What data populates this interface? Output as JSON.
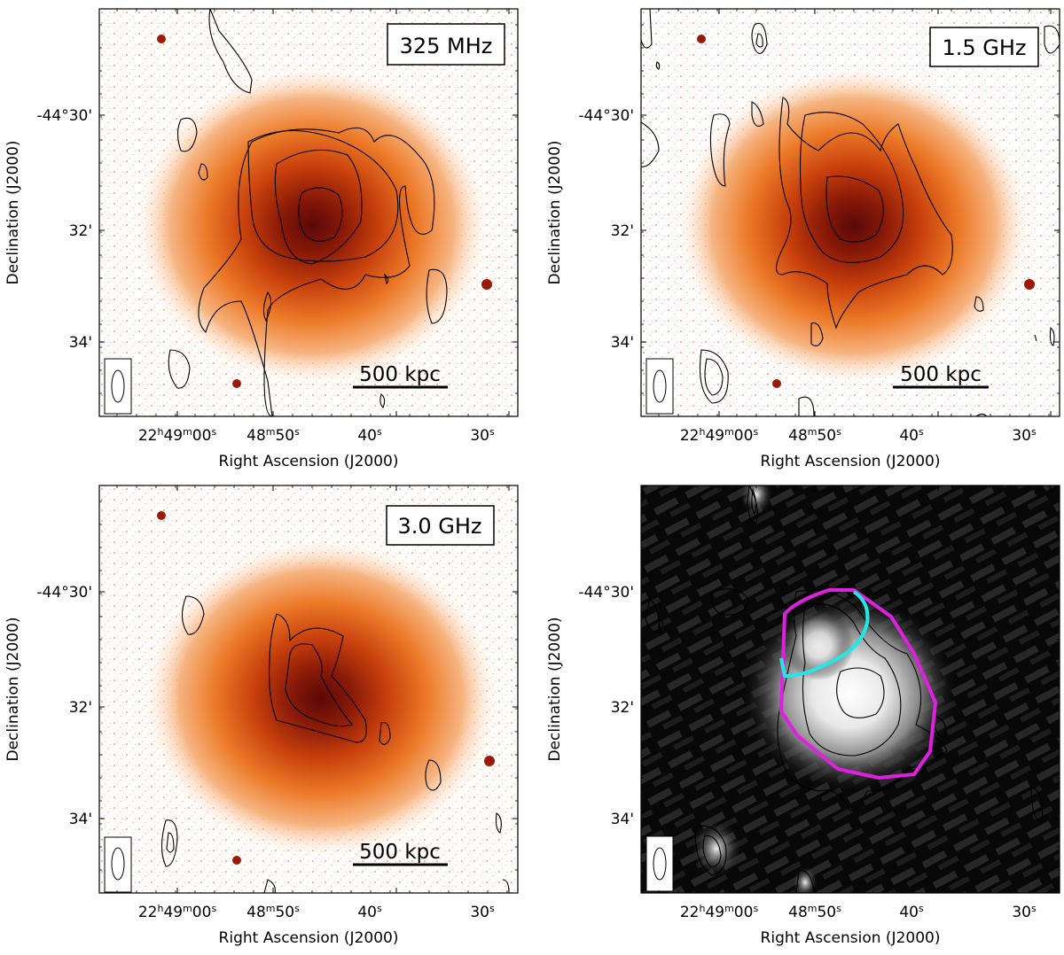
{
  "figure": {
    "axes": {
      "xlabel": "Right Ascension (J2000)",
      "ylabel": "Declination (J2000)",
      "xticks": [
        {
          "main": "22",
          "sup1": "h",
          "mid": "49",
          "sup2": "m",
          "tail": "00",
          "sup3": "s"
        },
        {
          "main": "48",
          "sup1": "m",
          "mid": "50",
          "sup2": "s"
        },
        {
          "main": "40",
          "sup1": "s"
        },
        {
          "main": "30",
          "sup1": "s"
        }
      ],
      "yticks": [
        "-44°30'",
        "32'",
        "34'"
      ]
    },
    "panels": [
      {
        "id": "a",
        "freq_label": "325 MHz",
        "scalebar": "500 kpc",
        "image": "x-ray-surface-brightness-orange"
      },
      {
        "id": "b",
        "freq_label": "1.5 GHz",
        "scalebar": "500 kpc",
        "image": "x-ray-surface-brightness-orange"
      },
      {
        "id": "c",
        "freq_label": "3.0 GHz",
        "scalebar": "500 kpc",
        "image": "x-ray-surface-brightness-orange"
      },
      {
        "id": "d",
        "freq_label": "",
        "scalebar": "",
        "image": "radio-greyscale",
        "regions": [
          {
            "name": "halo-region",
            "color": "#e020e0"
          },
          {
            "name": "sub-region",
            "color": "#20e8e8"
          }
        ]
      }
    ],
    "colors": {
      "halo_region": "#e020e0",
      "sub_region": "#20e8e8",
      "contour": "#000000"
    }
  }
}
